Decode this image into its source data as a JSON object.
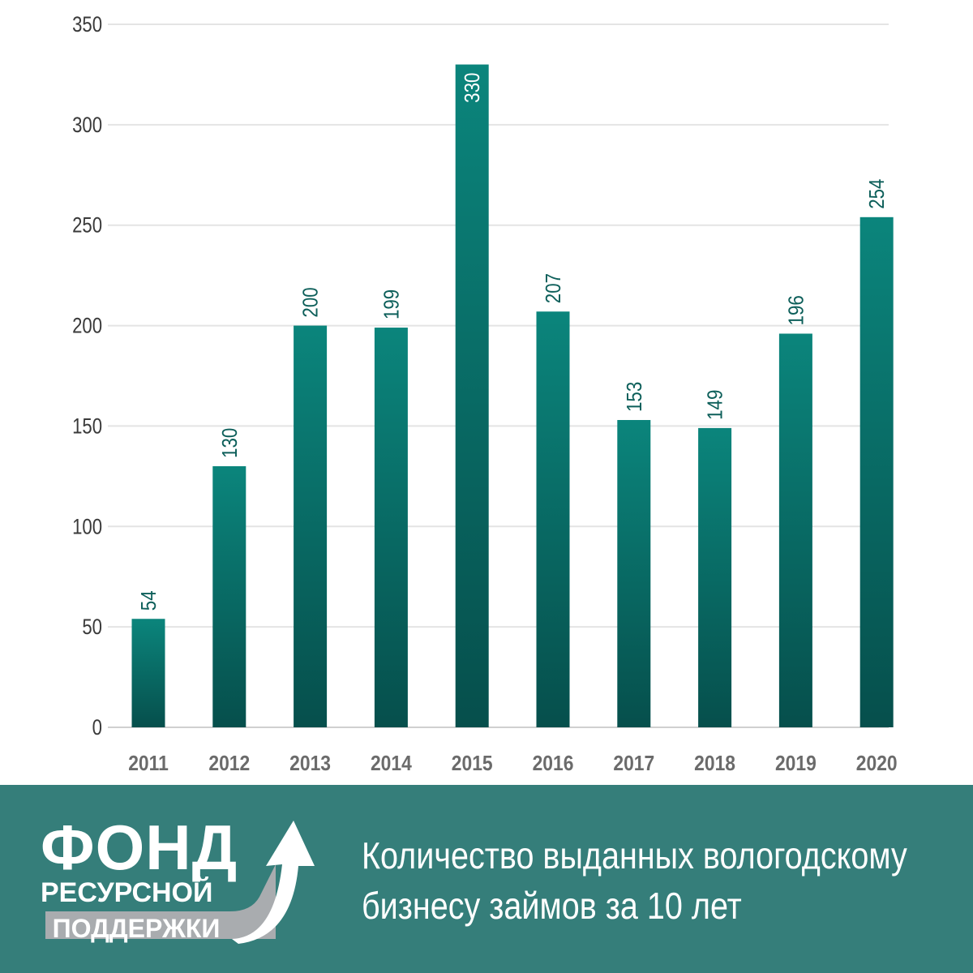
{
  "chart_data": {
    "type": "bar",
    "categories": [
      "2011",
      "2012",
      "2013",
      "2014",
      "2015",
      "2016",
      "2017",
      "2018",
      "2019",
      "2020"
    ],
    "values": [
      54,
      130,
      200,
      199,
      330,
      207,
      153,
      149,
      196,
      254
    ],
    "data_labels": [
      "54",
      "130",
      "200",
      "199",
      "330",
      "207",
      "153",
      "149",
      "196",
      "254"
    ],
    "yticks": [
      0,
      50,
      100,
      150,
      200,
      250,
      300,
      350
    ],
    "ylim": [
      0,
      350
    ],
    "grid": true,
    "bar_color": "#0b7a72",
    "bar_color_dark": "#06524f"
  },
  "footer": {
    "background": "#357e7a",
    "logo": {
      "line1": "ФОНД",
      "line2": "РЕСУРСНОЙ",
      "line3": "ПОДДЕРЖКИ"
    },
    "caption": {
      "line1": "Количество выданных вологодскому",
      "line2": "бизнесу займов за 10 лет"
    }
  }
}
